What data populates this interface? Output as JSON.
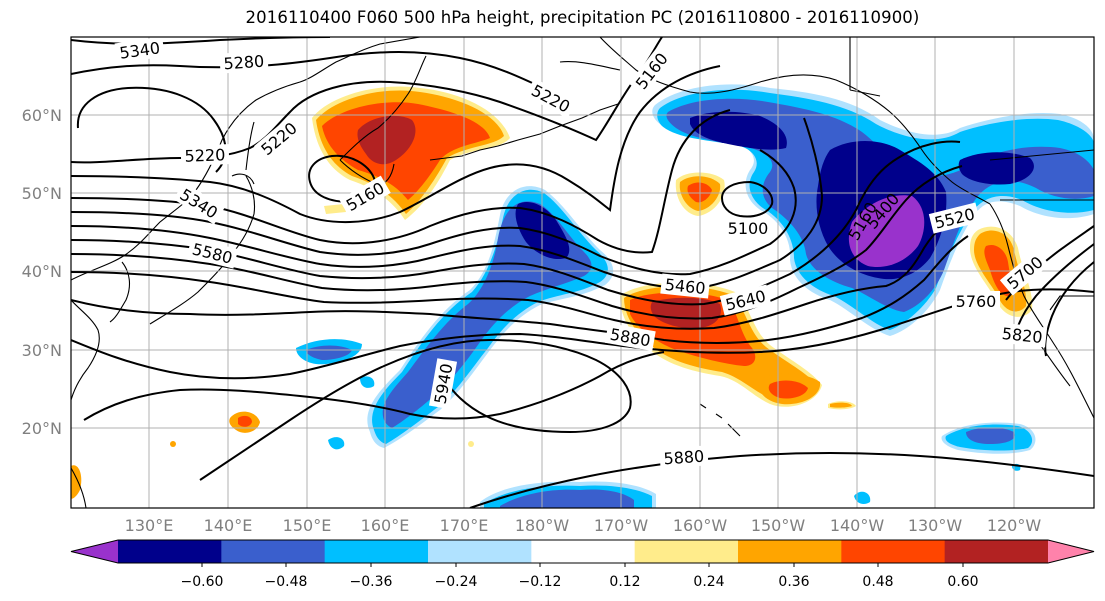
{
  "title": "2016110400 F060 500 hPa height, precipitation PC (2016110800 - 2016110900)",
  "latitude_labels": [
    "60°N",
    "50°N",
    "40°N",
    "30°N",
    "20°N"
  ],
  "longitude_labels": [
    "130°E",
    "140°E",
    "150°E",
    "160°E",
    "170°E",
    "180°W",
    "170°W",
    "160°W",
    "150°W",
    "140°W",
    "130°W",
    "120°W"
  ],
  "contour_labels": [
    "5340",
    "5280",
    "5220",
    "5160",
    "5220",
    "5220",
    "5340",
    "5160",
    "5580",
    "5100",
    "5460",
    "5640",
    "5880",
    "5940",
    "5880",
    "5160",
    "5400",
    "5520",
    "5700",
    "5760",
    "5820"
  ],
  "colorbar": {
    "tick_labels": [
      "−0.60",
      "−0.48",
      "−0.36",
      "−0.24",
      "−0.12",
      "0.12",
      "0.24",
      "0.36",
      "0.48",
      "0.60"
    ],
    "colors": [
      "#9932cc",
      "#00008b",
      "#3a5fcd",
      "#00bfff",
      "#b0e2ff",
      "#ffffff",
      "#ffec8b",
      "#ffa500",
      "#ff4500",
      "#b22222",
      "#ff82ab"
    ]
  },
  "fill_colors": {
    "neg1": "#b0e2ff",
    "neg2": "#00bfff",
    "neg3": "#3a5fcd",
    "neg4": "#00008b",
    "neg5": "#9932cc",
    "pos1": "#ffec8b",
    "pos2": "#ffa500",
    "pos3": "#ff4500",
    "pos4": "#b22222"
  }
}
